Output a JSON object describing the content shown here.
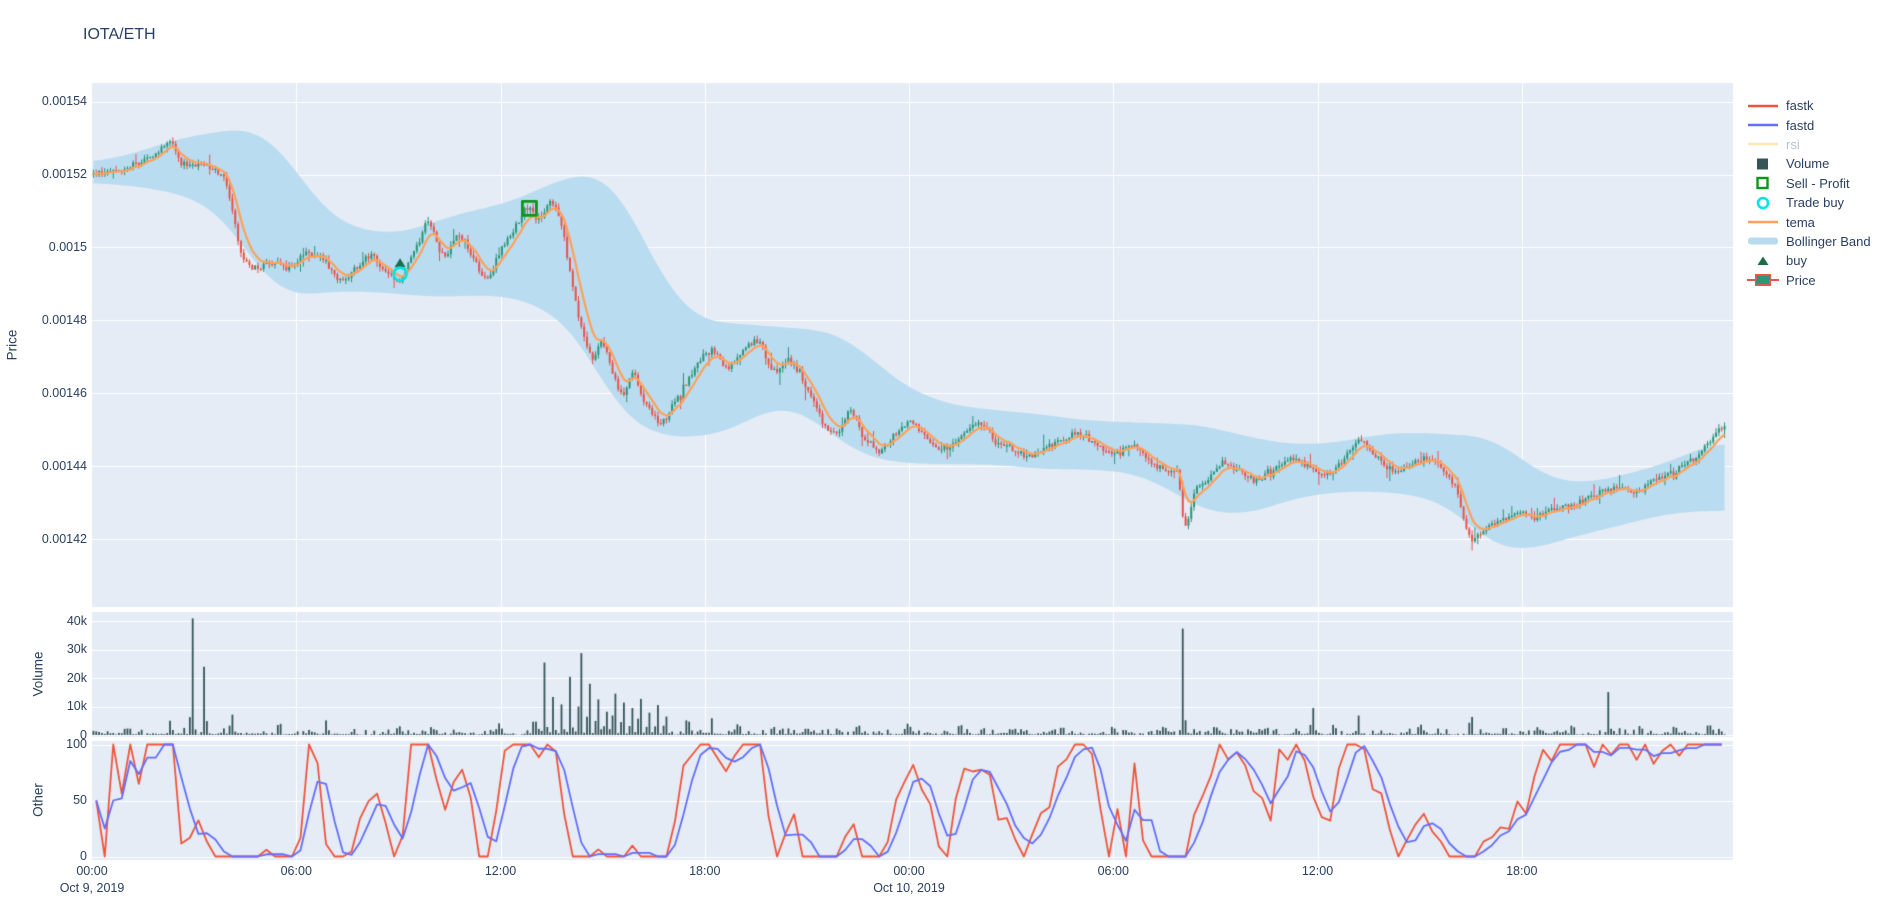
{
  "title": "IOTA/ETH",
  "colors": {
    "paper": "#ffffff",
    "plot_bg": "#e5ecf6",
    "grid": "#ffffff",
    "text": "#2a3f5f",
    "fastk": "#EF553B",
    "fastd": "#636EFA",
    "rsi": "#FECB52",
    "tema": "#FFA15A",
    "bollinger": "#b7dbef",
    "volume_bar": "#365559",
    "candle_up": "#2c9678",
    "candle_down": "#e9544b",
    "buy_marker": "#1e6b45",
    "sell_marker": "#0c9618",
    "trade_buy_marker": "#00e5e5",
    "hidden_legend_text": "#b9c2cf"
  },
  "legend": {
    "items": [
      {
        "label": "fastk",
        "type": "line",
        "color": "#EF553B",
        "hidden": false
      },
      {
        "label": "fastd",
        "type": "line",
        "color": "#636EFA",
        "hidden": false
      },
      {
        "label": "rsi",
        "type": "line",
        "color": "#FECB52",
        "hidden": true
      },
      {
        "label": "Volume",
        "type": "square",
        "color": "#365559",
        "hidden": false
      },
      {
        "label": "Sell - Profit",
        "type": "open-square",
        "color": "#0c9618",
        "hidden": false
      },
      {
        "label": "Trade buy",
        "type": "open-circle",
        "color": "#00e5e5",
        "hidden": false
      },
      {
        "label": "tema",
        "type": "line",
        "color": "#FFA15A",
        "hidden": false
      },
      {
        "label": "Bollinger Band",
        "type": "band",
        "color": "#b7dbef",
        "hidden": false
      },
      {
        "label": "buy",
        "type": "triangle",
        "color": "#1e6b45",
        "hidden": false
      },
      {
        "label": "Price",
        "type": "candle",
        "color": "#2c9678",
        "hidden": false
      }
    ]
  },
  "axes": {
    "price": {
      "label": "Price",
      "ticks": [
        {
          "v": 0.00154,
          "label": "0.00154"
        },
        {
          "v": 0.00152,
          "label": "0.00152"
        },
        {
          "v": 0.0015,
          "label": "0.0015"
        },
        {
          "v": 0.00148,
          "label": "0.00148"
        },
        {
          "v": 0.00146,
          "label": "0.00146"
        },
        {
          "v": 0.00144,
          "label": "0.00144"
        },
        {
          "v": 0.00142,
          "label": "0.00142"
        }
      ]
    },
    "volume": {
      "label": "Volume",
      "ticks": [
        {
          "v": 40000,
          "label": "40k"
        },
        {
          "v": 30000,
          "label": "30k"
        },
        {
          "v": 20000,
          "label": "20k"
        },
        {
          "v": 10000,
          "label": "10k"
        },
        {
          "v": 0,
          "label": "0"
        }
      ]
    },
    "other": {
      "label": "Other",
      "ticks": [
        {
          "v": 100,
          "label": "100"
        },
        {
          "v": 50,
          "label": "50"
        },
        {
          "v": 0,
          "label": "0"
        }
      ]
    },
    "x": {
      "ticks": [
        {
          "t": 0,
          "label": "00:00",
          "date": "Oct 9, 2019"
        },
        {
          "t": 6,
          "label": "06:00",
          "date": ""
        },
        {
          "t": 12,
          "label": "12:00",
          "date": ""
        },
        {
          "t": 18,
          "label": "18:00",
          "date": ""
        },
        {
          "t": 24,
          "label": "00:00",
          "date": "Oct 10, 2019"
        },
        {
          "t": 30,
          "label": "06:00",
          "date": ""
        },
        {
          "t": 36,
          "label": "12:00",
          "date": ""
        },
        {
          "t": 42,
          "label": "18:00",
          "date": ""
        }
      ]
    }
  },
  "chart_data": [
    {
      "type": "candlestick",
      "title": "IOTA/ETH",
      "ylabel": "Price",
      "ylim": [
        0.0014014,
        0.0015451
      ],
      "x_unit": "hours since Oct 9, 2019 00:00",
      "x_range": [
        0,
        48
      ],
      "interval_minutes": 5,
      "render_seed": 42,
      "close_jitter": 8e-07,
      "wick_jitter": 1.3e-06,
      "overlays": {
        "tema": "EMA smoothing of close, orange",
        "bollinger_band": "rolling mean +/- 2 sigma, light blue filled band"
      },
      "close_keyframes": [
        [
          0,
          0.00152
        ],
        [
          0.4,
          0.001521
        ],
        [
          0.8,
          0.0015205
        ],
        [
          1.2,
          0.0015225
        ],
        [
          1.6,
          0.001524
        ],
        [
          2.0,
          0.0015265
        ],
        [
          2.3,
          0.0015295
        ],
        [
          2.6,
          0.0015235
        ],
        [
          2.9,
          0.0015225
        ],
        [
          3.2,
          0.001523
        ],
        [
          3.6,
          0.0015215
        ],
        [
          3.9,
          0.0015185
        ],
        [
          4.1,
          0.001511
        ],
        [
          4.4,
          0.0014975
        ],
        [
          4.8,
          0.0014945
        ],
        [
          5.3,
          0.001496
        ],
        [
          5.8,
          0.0014945
        ],
        [
          6.3,
          0.0014985
        ],
        [
          6.8,
          0.0014965
        ],
        [
          7.3,
          0.001491
        ],
        [
          7.8,
          0.001495
        ],
        [
          8.2,
          0.0014975
        ],
        [
          8.6,
          0.001494
        ],
        [
          9.0,
          0.001491
        ],
        [
          9.5,
          0.001499
        ],
        [
          9.9,
          0.001507
        ],
        [
          10.3,
          0.001498
        ],
        [
          10.8,
          0.001503
        ],
        [
          11.2,
          0.001497
        ],
        [
          11.6,
          0.0014915
        ],
        [
          12.0,
          0.001499
        ],
        [
          12.4,
          0.001505
        ],
        [
          12.8,
          0.001511
        ],
        [
          13.1,
          0.001508
        ],
        [
          13.5,
          0.001512
        ],
        [
          13.8,
          0.001506
        ],
        [
          14.1,
          0.00149
        ],
        [
          14.4,
          0.001477
        ],
        [
          14.7,
          0.00147
        ],
        [
          15.0,
          0.001474
        ],
        [
          15.3,
          0.001465
        ],
        [
          15.6,
          0.00146
        ],
        [
          15.9,
          0.001465
        ],
        [
          16.2,
          0.001458
        ],
        [
          16.7,
          0.001452
        ],
        [
          17.0,
          0.001456
        ],
        [
          17.4,
          0.001462
        ],
        [
          17.8,
          0.001468
        ],
        [
          18.2,
          0.001472
        ],
        [
          18.7,
          0.001467
        ],
        [
          19.2,
          0.001472
        ],
        [
          19.6,
          0.001474
        ],
        [
          20.0,
          0.001466
        ],
        [
          20.5,
          0.001469
        ],
        [
          21.0,
          0.001461
        ],
        [
          21.5,
          0.001452
        ],
        [
          21.9,
          0.001449
        ],
        [
          22.3,
          0.001455
        ],
        [
          22.7,
          0.001447
        ],
        [
          23.1,
          0.001444
        ],
        [
          23.5,
          0.001448
        ],
        [
          24.0,
          0.001452
        ],
        [
          24.5,
          0.001448
        ],
        [
          25.0,
          0.001445
        ],
        [
          25.5,
          0.001448
        ],
        [
          26.0,
          0.001452
        ],
        [
          26.5,
          0.001447
        ],
        [
          27.0,
          0.001445
        ],
        [
          27.5,
          0.001443
        ],
        [
          28.0,
          0.001445
        ],
        [
          28.5,
          0.001447
        ],
        [
          29.0,
          0.001449
        ],
        [
          29.5,
          0.001446
        ],
        [
          30.0,
          0.001444
        ],
        [
          30.5,
          0.001446
        ],
        [
          31.0,
          0.001442
        ],
        [
          31.5,
          0.001439
        ],
        [
          31.9,
          0.001438
        ],
        [
          32.1,
          0.001424
        ],
        [
          32.4,
          0.001433
        ],
        [
          32.8,
          0.001437
        ],
        [
          33.2,
          0.001441
        ],
        [
          33.7,
          0.001439
        ],
        [
          34.2,
          0.001436
        ],
        [
          34.7,
          0.001439
        ],
        [
          35.2,
          0.001442
        ],
        [
          35.7,
          0.00144
        ],
        [
          36.2,
          0.001438
        ],
        [
          36.7,
          0.001441
        ],
        [
          37.2,
          0.001447
        ],
        [
          37.7,
          0.001443
        ],
        [
          38.2,
          0.001439
        ],
        [
          38.7,
          0.00144
        ],
        [
          39.2,
          0.001442
        ],
        [
          39.7,
          0.001439
        ],
        [
          40.1,
          0.001433
        ],
        [
          40.5,
          0.00142
        ],
        [
          40.9,
          0.001423
        ],
        [
          41.4,
          0.001425
        ],
        [
          41.9,
          0.001427
        ],
        [
          42.4,
          0.001426
        ],
        [
          42.9,
          0.001428
        ],
        [
          43.4,
          0.001429
        ],
        [
          43.9,
          0.001431
        ],
        [
          44.4,
          0.001433
        ],
        [
          44.9,
          0.001434
        ],
        [
          45.4,
          0.001433
        ],
        [
          45.9,
          0.001436
        ],
        [
          46.4,
          0.001438
        ],
        [
          46.9,
          0.001441
        ],
        [
          47.3,
          0.001444
        ],
        [
          47.6,
          0.001448
        ],
        [
          47.95,
          0.001451
        ]
      ],
      "markers": {
        "trade_buy": {
          "t": 9.05,
          "price": 0.0014927,
          "symbol": "open-circle",
          "color": "#00e5e5"
        },
        "buy": {
          "t": 9.05,
          "price": 0.0014957,
          "symbol": "triangle-up",
          "color": "#1e6b45"
        },
        "sell_profit": {
          "t": 12.85,
          "price": 0.0015107,
          "symbol": "open-square",
          "color": "#0c9618"
        }
      }
    },
    {
      "type": "bar",
      "ylabel": "Volume",
      "ylim": [
        0,
        42500
      ],
      "interval_minutes": 5,
      "base_volume_max": 2000,
      "spikes": [
        [
          1.0,
          4000
        ],
        [
          2.3,
          5000
        ],
        [
          2.95,
          40500
        ],
        [
          3.3,
          24000
        ],
        [
          4.1,
          8000
        ],
        [
          5.5,
          6000
        ],
        [
          6.9,
          5000
        ],
        [
          9.0,
          4500
        ],
        [
          10.0,
          4000
        ],
        [
          12.0,
          3500
        ],
        [
          13.0,
          9000
        ],
        [
          13.3,
          26000
        ],
        [
          13.55,
          13000
        ],
        [
          13.8,
          11000
        ],
        [
          14.05,
          20000
        ],
        [
          14.35,
          35000
        ],
        [
          14.6,
          22000
        ],
        [
          14.85,
          15000
        ],
        [
          15.1,
          10000
        ],
        [
          15.35,
          18000
        ],
        [
          15.6,
          14000
        ],
        [
          15.85,
          12000
        ],
        [
          16.1,
          16000
        ],
        [
          16.35,
          9000
        ],
        [
          16.6,
          11000
        ],
        [
          16.85,
          7000
        ],
        [
          17.5,
          6000
        ],
        [
          18.2,
          5500
        ],
        [
          19.0,
          4000
        ],
        [
          20.0,
          3500
        ],
        [
          21.0,
          4000
        ],
        [
          22.5,
          5000
        ],
        [
          24.0,
          4500
        ],
        [
          25.5,
          4000
        ],
        [
          27.0,
          3500
        ],
        [
          28.5,
          4200
        ],
        [
          30.0,
          3800
        ],
        [
          31.5,
          4500
        ],
        [
          32.05,
          38000
        ],
        [
          33.0,
          5000
        ],
        [
          34.5,
          4000
        ],
        [
          35.85,
          12000
        ],
        [
          36.5,
          4000
        ],
        [
          37.2,
          5500
        ],
        [
          39.0,
          4500
        ],
        [
          40.5,
          8500
        ],
        [
          41.5,
          4000
        ],
        [
          42.5,
          3500
        ],
        [
          43.5,
          4500
        ],
        [
          44.55,
          15000
        ],
        [
          45.5,
          4000
        ],
        [
          46.5,
          5000
        ],
        [
          47.5,
          6000
        ]
      ]
    },
    {
      "type": "line",
      "ylabel": "Other",
      "ylim": [
        0,
        100
      ],
      "interval_minutes": 15,
      "behavior": "stochastic oscillator lines saturating repeatedly at 0 and 100",
      "series": [
        {
          "name": "fastk",
          "color": "#EF553B",
          "hidden": false
        },
        {
          "name": "fastd",
          "color": "#636EFA",
          "hidden": false
        },
        {
          "name": "rsi",
          "color": "#FECB52",
          "hidden": true
        }
      ]
    }
  ]
}
